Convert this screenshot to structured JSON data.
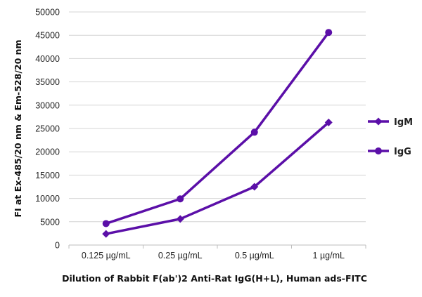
{
  "chart_data": {
    "type": "line",
    "title": "",
    "xlabel": "Dilution of Rabbit F(ab')2 Anti-Rat IgG(H+L), Human ads-FITC",
    "ylabel": "FI at Ex-485/20 nm & Em-528/20 nm",
    "categories": [
      "0.125 µg/mL",
      "0.25 µg/mL",
      "0.5 µg/mL",
      "1 µg/mL"
    ],
    "ylim": [
      0,
      50000
    ],
    "yticks": [
      "0",
      "5000",
      "10000",
      "15000",
      "20000",
      "25000",
      "30000",
      "35000",
      "40000",
      "45000",
      "50000"
    ],
    "grid": "horizontal",
    "legend_position": "right",
    "series": [
      {
        "name": "IgM",
        "marker": "diamond",
        "color": "#5b0fa8",
        "values": [
          2400,
          5600,
          12500,
          26300
        ]
      },
      {
        "name": "IgG",
        "marker": "circle",
        "color": "#5b0fa8",
        "values": [
          4600,
          9900,
          24200,
          45600
        ]
      }
    ]
  }
}
